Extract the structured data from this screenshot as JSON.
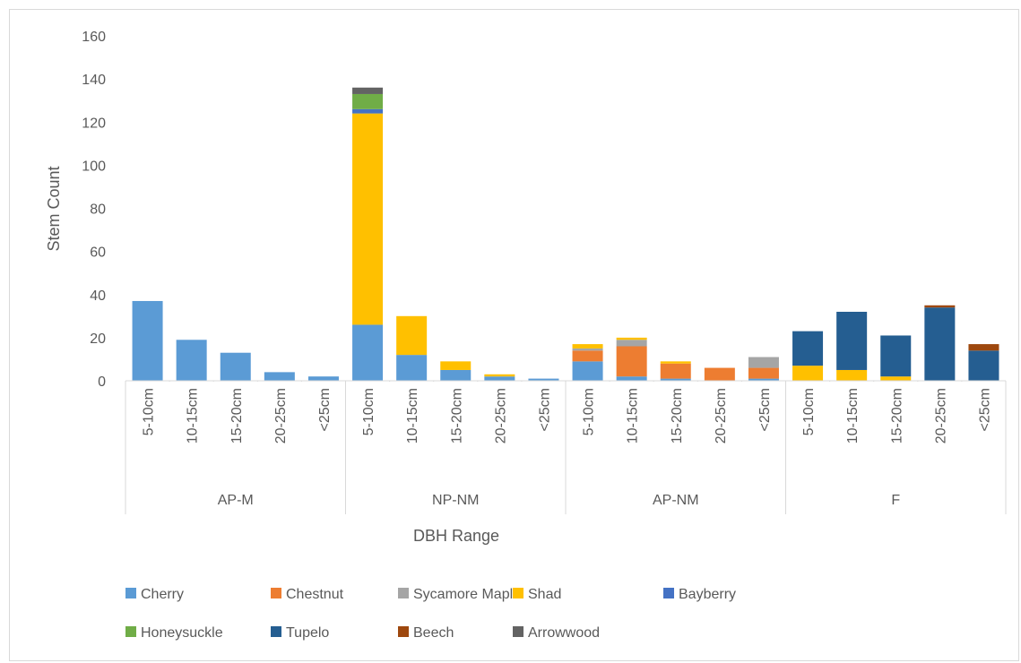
{
  "chart_data": {
    "type": "bar",
    "stacked": true,
    "title": "",
    "xlabel": "DBH Range",
    "ylabel": "Stem Count",
    "ylim": [
      0,
      160
    ],
    "yticks": [
      0,
      20,
      40,
      60,
      80,
      100,
      120,
      140,
      160
    ],
    "grid": false,
    "legend_position": "bottom",
    "groups": [
      {
        "name": "AP-M",
        "categories": [
          "5-10cm",
          "10-15cm",
          "15-20cm",
          "20-25cm",
          "<25cm"
        ]
      },
      {
        "name": "NP-NM",
        "categories": [
          "5-10cm",
          "10-15cm",
          "15-20cm",
          "20-25cm",
          "<25cm"
        ]
      },
      {
        "name": "AP-NM",
        "categories": [
          "5-10cm",
          "10-15cm",
          "15-20cm",
          "20-25cm",
          "<25cm"
        ]
      },
      {
        "name": "F",
        "categories": [
          "5-10cm",
          "10-15cm",
          "15-20cm",
          "20-25cm",
          "<25cm"
        ]
      }
    ],
    "series": [
      {
        "name": "Cherry",
        "color": "#5b9bd5",
        "values": [
          37,
          19,
          13,
          4,
          2,
          26,
          12,
          5,
          2,
          1,
          9,
          2,
          1,
          0,
          1,
          0,
          0,
          0,
          0,
          0
        ]
      },
      {
        "name": "Chestnut",
        "color": "#ed7d31",
        "values": [
          0,
          0,
          0,
          0,
          0,
          0,
          0,
          0,
          0,
          0,
          5,
          14,
          7,
          6,
          5,
          0,
          0,
          0,
          0,
          0
        ]
      },
      {
        "name": "Sycamore Maple",
        "color": "#a5a5a5",
        "values": [
          0,
          0,
          0,
          0,
          0,
          0,
          0,
          0,
          0,
          0,
          1,
          3,
          0,
          0,
          5,
          0,
          0,
          0,
          0,
          0
        ]
      },
      {
        "name": "Shad",
        "color": "#ffc000",
        "values": [
          0,
          0,
          0,
          0,
          0,
          98,
          18,
          4,
          1,
          0,
          2,
          1,
          1,
          0,
          0,
          7,
          5,
          2,
          0,
          0
        ]
      },
      {
        "name": "Bayberry",
        "color": "#4472c4",
        "values": [
          0,
          0,
          0,
          0,
          0,
          2,
          0,
          0,
          0,
          0,
          0,
          0,
          0,
          0,
          0,
          0,
          0,
          0,
          0,
          0
        ]
      },
      {
        "name": "Honeysuckle",
        "color": "#70ad47",
        "values": [
          0,
          0,
          0,
          0,
          0,
          7,
          0,
          0,
          0,
          0,
          0,
          0,
          0,
          0,
          0,
          0,
          0,
          0,
          0,
          0
        ]
      },
      {
        "name": "Tupelo",
        "color": "#255e91",
        "values": [
          0,
          0,
          0,
          0,
          0,
          0,
          0,
          0,
          0,
          0,
          0,
          0,
          0,
          0,
          0,
          16,
          27,
          19,
          34,
          14
        ]
      },
      {
        "name": "Beech",
        "color": "#9e480e",
        "values": [
          0,
          0,
          0,
          0,
          0,
          0,
          0,
          0,
          0,
          0,
          0,
          0,
          0,
          0,
          0,
          0,
          0,
          0,
          1,
          3
        ]
      },
      {
        "name": "Arrowwood",
        "color": "#636363",
        "values": [
          0,
          0,
          0,
          0,
          0,
          3,
          0,
          0,
          0,
          0,
          0,
          0,
          0,
          0,
          0,
          0,
          0,
          0,
          0,
          0
        ]
      }
    ]
  }
}
